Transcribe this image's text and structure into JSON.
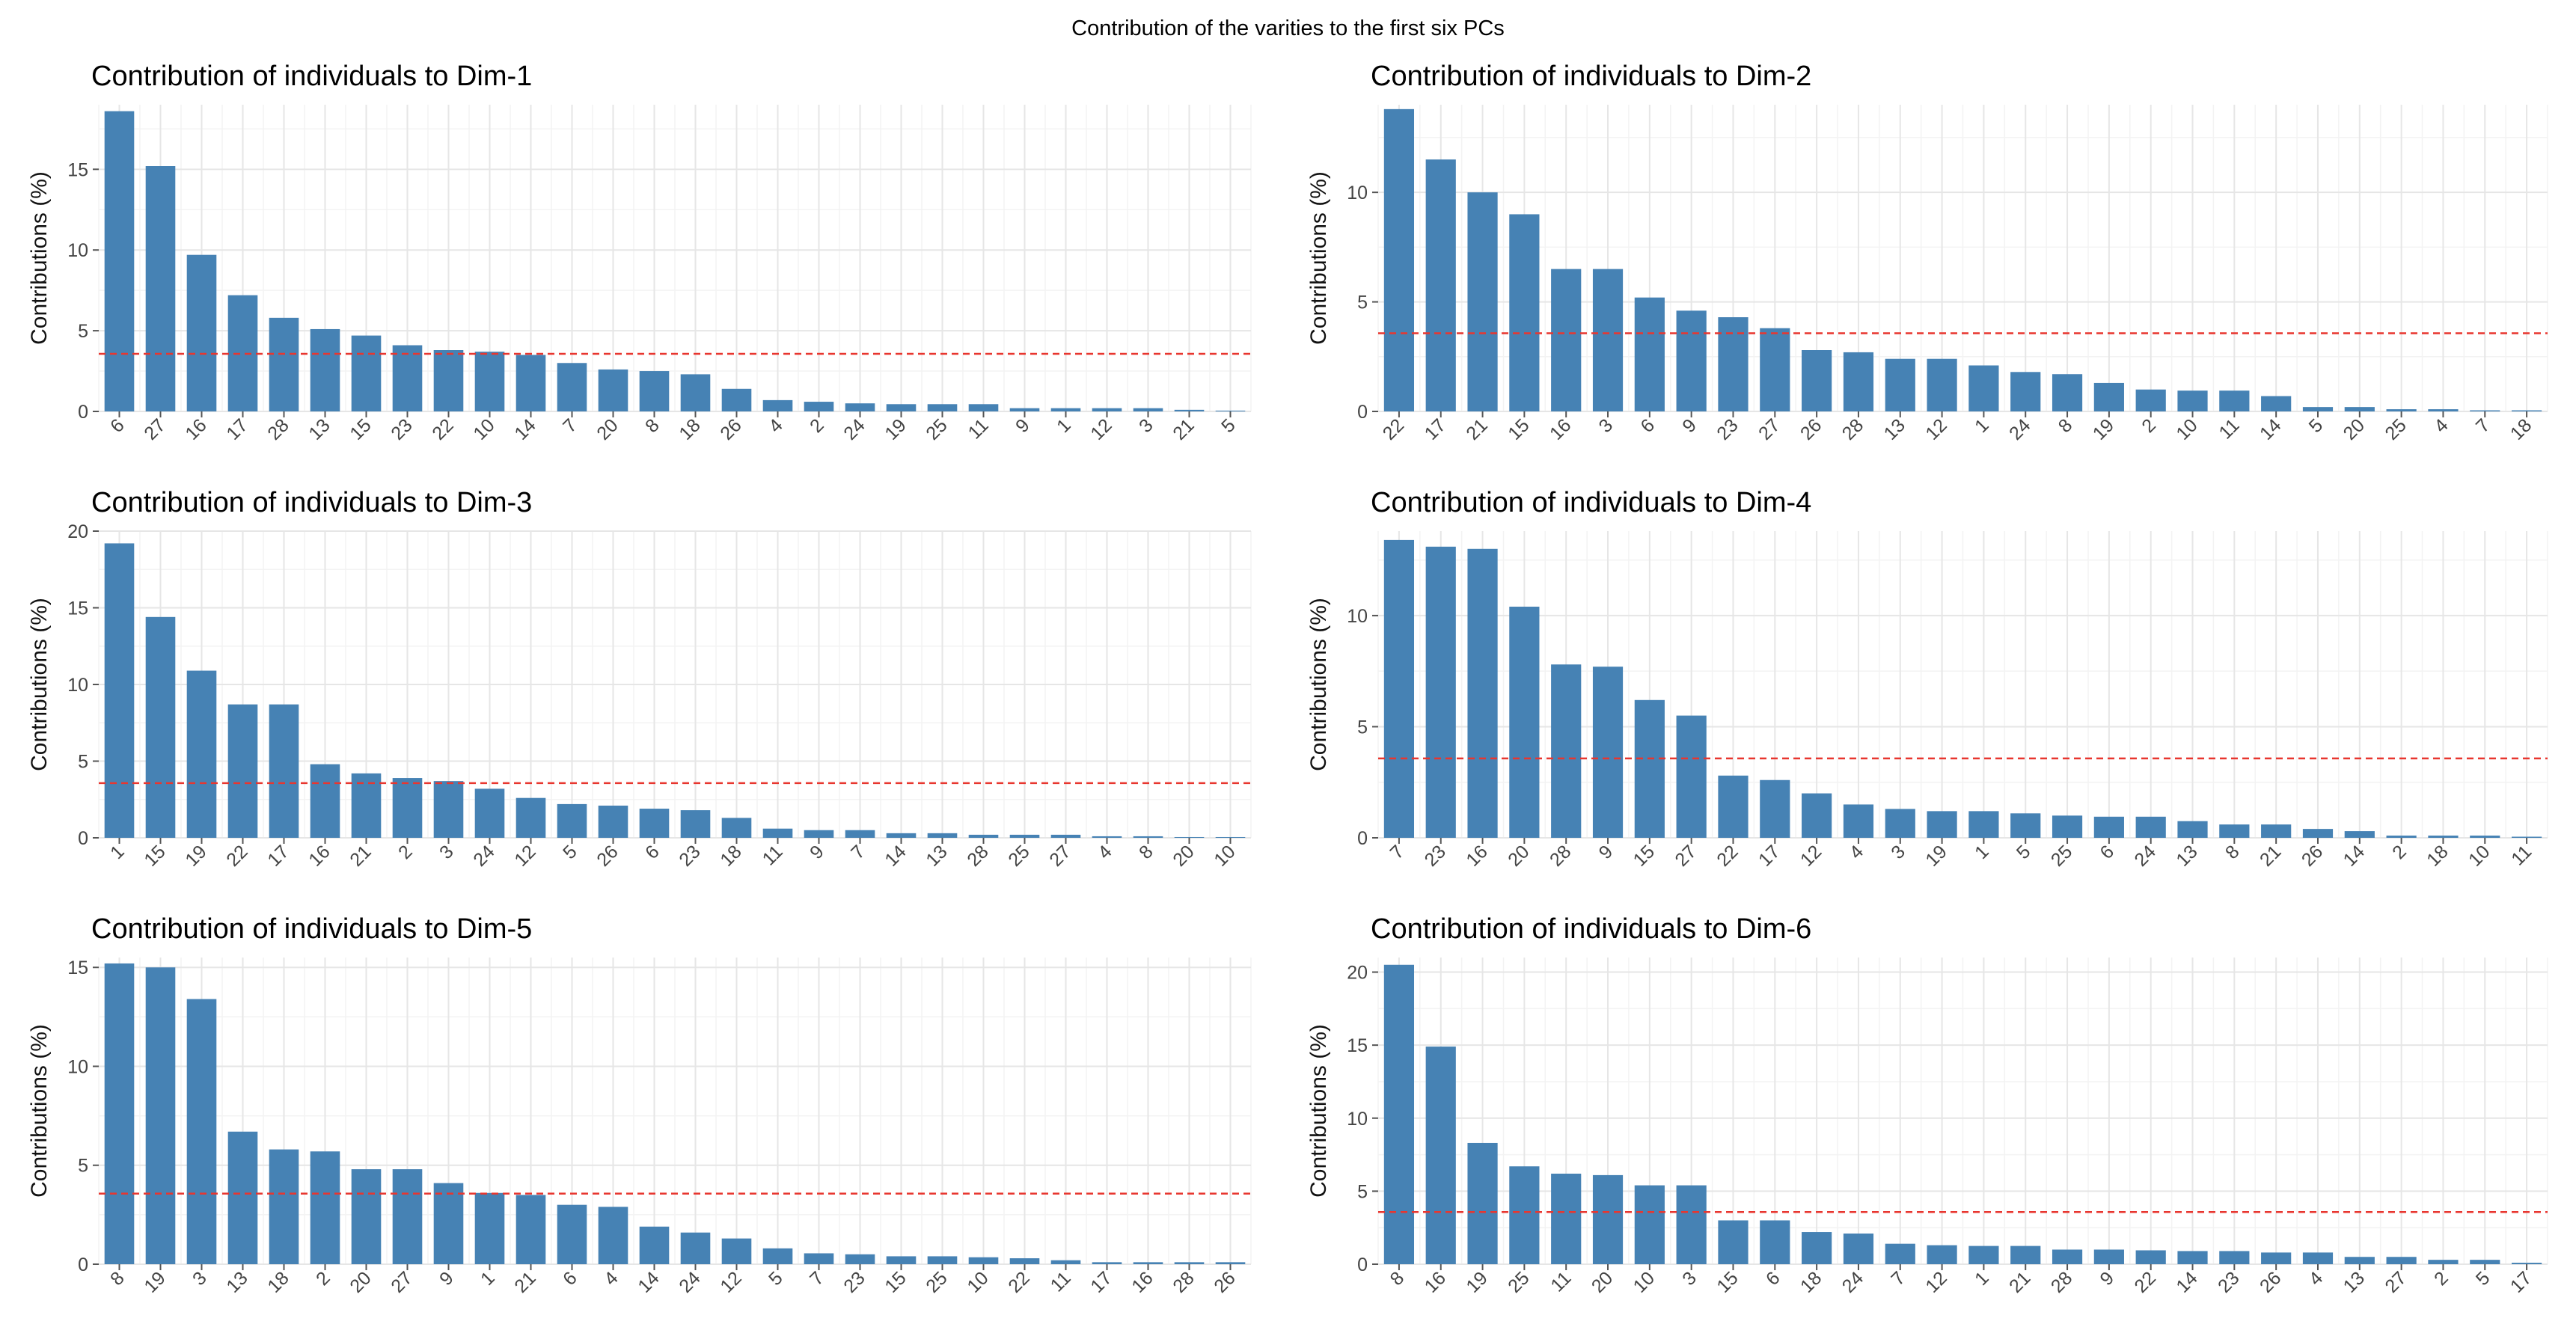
{
  "suptitle": "Contribution of the varities to the first six PCs",
  "chart_data": [
    {
      "type": "bar",
      "title": "Contribution of individuals to Dim-1",
      "ylabel": "Contributions (%)",
      "xlabel": "",
      "ylim": [
        0,
        19
      ],
      "yticks": [
        0,
        5,
        10,
        15
      ],
      "reference_line": 3.57,
      "bar_color": "#4682b4",
      "reference_color": "#e8362f",
      "categories": [
        "6",
        "27",
        "16",
        "17",
        "28",
        "13",
        "15",
        "23",
        "22",
        "10",
        "14",
        "7",
        "20",
        "8",
        "18",
        "26",
        "4",
        "2",
        "24",
        "19",
        "25",
        "11",
        "9",
        "1",
        "12",
        "3",
        "21",
        "5"
      ],
      "values": [
        18.6,
        15.2,
        9.7,
        7.2,
        5.8,
        5.1,
        4.7,
        4.1,
        3.8,
        3.7,
        3.5,
        3.0,
        2.6,
        2.5,
        2.3,
        1.4,
        0.7,
        0.6,
        0.5,
        0.45,
        0.45,
        0.45,
        0.2,
        0.2,
        0.2,
        0.2,
        0.1,
        0.05
      ]
    },
    {
      "type": "bar",
      "title": "Contribution of individuals to Dim-2",
      "ylabel": "Contributions (%)",
      "xlabel": "",
      "ylim": [
        0,
        14
      ],
      "yticks": [
        0,
        5,
        10
      ],
      "reference_line": 3.57,
      "bar_color": "#4682b4",
      "reference_color": "#e8362f",
      "categories": [
        "22",
        "17",
        "21",
        "15",
        "16",
        "3",
        "6",
        "9",
        "23",
        "27",
        "26",
        "28",
        "13",
        "12",
        "1",
        "24",
        "8",
        "19",
        "2",
        "10",
        "11",
        "14",
        "5",
        "20",
        "25",
        "4",
        "7",
        "18"
      ],
      "values": [
        13.8,
        11.5,
        10.0,
        9.0,
        6.5,
        6.5,
        5.2,
        4.6,
        4.3,
        3.8,
        2.8,
        2.7,
        2.4,
        2.4,
        2.1,
        1.8,
        1.7,
        1.3,
        1.0,
        0.95,
        0.95,
        0.7,
        0.2,
        0.2,
        0.1,
        0.1,
        0.05,
        0.05
      ]
    },
    {
      "type": "bar",
      "title": "Contribution of individuals to Dim-3",
      "ylabel": "Contributions (%)",
      "xlabel": "",
      "ylim": [
        0,
        20
      ],
      "yticks": [
        0,
        5,
        10,
        15,
        20
      ],
      "reference_line": 3.57,
      "bar_color": "#4682b4",
      "reference_color": "#e8362f",
      "categories": [
        "1",
        "15",
        "19",
        "22",
        "17",
        "16",
        "21",
        "2",
        "3",
        "24",
        "12",
        "5",
        "26",
        "6",
        "23",
        "18",
        "11",
        "9",
        "7",
        "14",
        "13",
        "28",
        "25",
        "27",
        "4",
        "8",
        "20",
        "10"
      ],
      "values": [
        19.2,
        14.4,
        10.9,
        8.7,
        8.7,
        4.8,
        4.2,
        3.9,
        3.7,
        3.2,
        2.6,
        2.2,
        2.1,
        1.9,
        1.8,
        1.3,
        0.6,
        0.5,
        0.5,
        0.3,
        0.3,
        0.2,
        0.2,
        0.2,
        0.1,
        0.1,
        0.05,
        0.05
      ]
    },
    {
      "type": "bar",
      "title": "Contribution of individuals to Dim-4",
      "ylabel": "Contributions (%)",
      "xlabel": "",
      "ylim": [
        0,
        13.8
      ],
      "yticks": [
        0,
        5,
        10
      ],
      "reference_line": 3.57,
      "bar_color": "#4682b4",
      "reference_color": "#e8362f",
      "categories": [
        "7",
        "23",
        "16",
        "20",
        "28",
        "9",
        "15",
        "27",
        "22",
        "17",
        "12",
        "4",
        "3",
        "19",
        "1",
        "5",
        "25",
        "6",
        "24",
        "13",
        "8",
        "21",
        "26",
        "14",
        "2",
        "18",
        "10",
        "11"
      ],
      "values": [
        13.4,
        13.1,
        13.0,
        10.4,
        7.8,
        7.7,
        6.2,
        5.5,
        2.8,
        2.6,
        2.0,
        1.5,
        1.3,
        1.2,
        1.2,
        1.1,
        1.0,
        0.95,
        0.95,
        0.75,
        0.6,
        0.6,
        0.4,
        0.3,
        0.1,
        0.1,
        0.1,
        0.05
      ]
    },
    {
      "type": "bar",
      "title": "Contribution of individuals to Dim-5",
      "ylabel": "Contributions (%)",
      "xlabel": "",
      "ylim": [
        0,
        15.5
      ],
      "yticks": [
        0,
        5,
        10,
        15
      ],
      "reference_line": 3.57,
      "bar_color": "#4682b4",
      "reference_color": "#e8362f",
      "categories": [
        "8",
        "19",
        "3",
        "13",
        "18",
        "2",
        "20",
        "27",
        "9",
        "1",
        "21",
        "6",
        "4",
        "14",
        "24",
        "12",
        "5",
        "7",
        "23",
        "15",
        "25",
        "10",
        "22",
        "11",
        "17",
        "16",
        "28",
        "26"
      ],
      "values": [
        15.2,
        15.0,
        13.4,
        6.7,
        5.8,
        5.7,
        4.8,
        4.8,
        4.1,
        3.6,
        3.5,
        3.0,
        2.9,
        1.9,
        1.6,
        1.3,
        0.8,
        0.55,
        0.5,
        0.4,
        0.4,
        0.35,
        0.3,
        0.2,
        0.1,
        0.1,
        0.1,
        0.1
      ]
    },
    {
      "type": "bar",
      "title": "Contribution of individuals to Dim-6",
      "ylabel": "Contributions (%)",
      "xlabel": "",
      "ylim": [
        0,
        21
      ],
      "yticks": [
        0,
        5,
        10,
        15,
        20
      ],
      "reference_line": 3.57,
      "bar_color": "#4682b4",
      "reference_color": "#e8362f",
      "categories": [
        "8",
        "16",
        "19",
        "25",
        "11",
        "20",
        "10",
        "3",
        "15",
        "6",
        "18",
        "24",
        "7",
        "12",
        "1",
        "21",
        "28",
        "9",
        "22",
        "14",
        "23",
        "26",
        "4",
        "13",
        "27",
        "2",
        "5",
        "17"
      ],
      "values": [
        20.5,
        14.9,
        8.3,
        6.7,
        6.2,
        6.1,
        5.4,
        5.4,
        3.0,
        3.0,
        2.2,
        2.1,
        1.4,
        1.3,
        1.25,
        1.25,
        1.0,
        1.0,
        0.95,
        0.9,
        0.9,
        0.8,
        0.8,
        0.5,
        0.5,
        0.3,
        0.3,
        0.1
      ]
    }
  ]
}
